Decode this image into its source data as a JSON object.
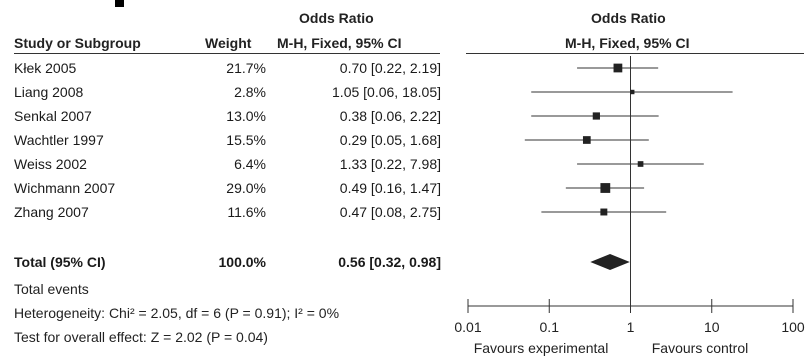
{
  "headers": {
    "or_group_left": "Odds Ratio",
    "or_group_right": "Odds Ratio",
    "study": "Study or Subgroup",
    "weight": "Weight",
    "method_left": "M-H, Fixed, 95% CI",
    "method_right": "M-H, Fixed, 95% CI"
  },
  "chart_data": {
    "type": "forest",
    "x_scale": "log",
    "xlim": [
      0.01,
      100
    ],
    "x_ticks": [
      "0.01",
      "0.1",
      "1",
      "10",
      "100"
    ],
    "x_tick_values": [
      0.01,
      0.1,
      1,
      10,
      100
    ],
    "xlabel_left": "Favours experimental",
    "xlabel_right": "Favours control",
    "studies": [
      {
        "name": "Kłek 2005",
        "weight": "21.7%",
        "ci_text": "0.70 [0.22, 2.19]",
        "or": 0.7,
        "lower": 0.22,
        "upper": 2.19,
        "w": 21.7
      },
      {
        "name": "Liang 2008",
        "weight": "2.8%",
        "ci_text": "1.05 [0.06, 18.05]",
        "or": 1.05,
        "lower": 0.06,
        "upper": 18.05,
        "w": 2.8
      },
      {
        "name": "Senkal 2007",
        "weight": "13.0%",
        "ci_text": "0.38 [0.06, 2.22]",
        "or": 0.38,
        "lower": 0.06,
        "upper": 2.22,
        "w": 13.0
      },
      {
        "name": "Wachtler 1997",
        "weight": "15.5%",
        "ci_text": "0.29 [0.05, 1.68]",
        "or": 0.29,
        "lower": 0.05,
        "upper": 1.68,
        "w": 15.5
      },
      {
        "name": "Weiss 2002",
        "weight": "6.4%",
        "ci_text": "1.33 [0.22, 7.98]",
        "or": 1.33,
        "lower": 0.22,
        "upper": 7.98,
        "w": 6.4
      },
      {
        "name": "Wichmann 2007",
        "weight": "29.0%",
        "ci_text": "0.49 [0.16, 1.47]",
        "or": 0.49,
        "lower": 0.16,
        "upper": 1.47,
        "w": 29.0
      },
      {
        "name": "Zhang 2007",
        "weight": "11.6%",
        "ci_text": "0.47 [0.08, 2.75]",
        "or": 0.47,
        "lower": 0.08,
        "upper": 2.75,
        "w": 11.6
      }
    ],
    "total": {
      "name": "Total (95% CI)",
      "weight": "100.0%",
      "ci_text": "0.56 [0.32, 0.98]",
      "or": 0.56,
      "lower": 0.32,
      "upper": 0.98
    }
  },
  "footer": {
    "total_events": "Total events",
    "heterogeneity": "Heterogeneity: Chi² = 2.05, df = 6 (P = 0.91); I² = 0%",
    "overall_effect": "Test for overall effect: Z = 2.02 (P = 0.04)"
  },
  "colors": {
    "marker": "#222222",
    "line": "#333333"
  }
}
